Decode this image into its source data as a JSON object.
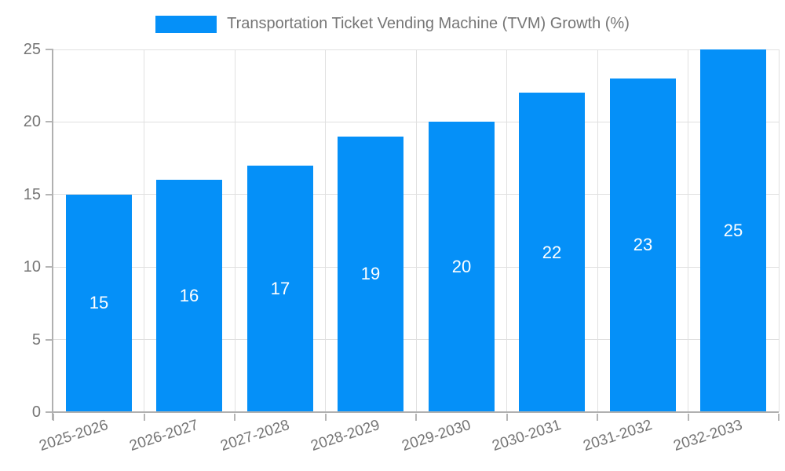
{
  "chart_data": {
    "type": "bar",
    "title": "Transportation Ticket Vending Machine (TVM) Growth (%)",
    "legend_position": "top",
    "categories": [
      "2025-2026",
      "2026-2027",
      "2027-2028",
      "2028-2029",
      "2029-2030",
      "2030-2031",
      "2031-2032",
      "2032-2033"
    ],
    "values": [
      15,
      16,
      17,
      19,
      20,
      22,
      23,
      25
    ],
    "bar_value_labels": [
      "15",
      "16",
      "17",
      "19",
      "20",
      "22",
      "23",
      "25"
    ],
    "xlabel": "",
    "ylabel": "",
    "ylim": [
      0,
      25
    ],
    "yticks": [
      0,
      5,
      10,
      15,
      20,
      25
    ],
    "grid": true,
    "colors": {
      "bar": "#0590F8",
      "bar_label": "#ffffff",
      "grid_line": "#e0e0e0",
      "axis_line": "#b0b0b0",
      "tick_mark": "#b5b5b5",
      "tick_text": "#757575",
      "legend_text": "#757575",
      "background": "#ffffff"
    }
  }
}
